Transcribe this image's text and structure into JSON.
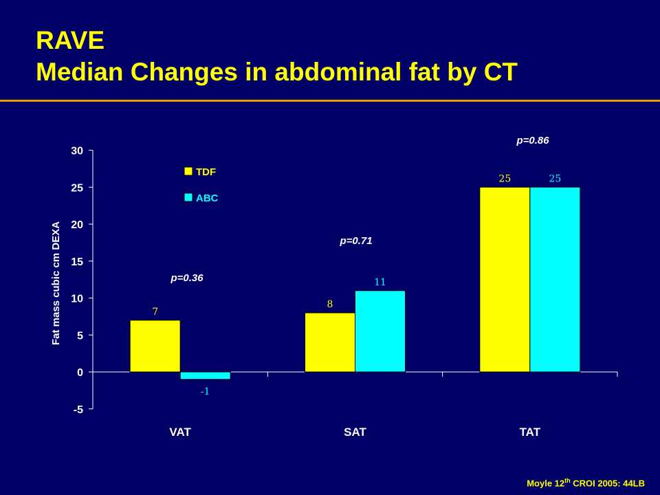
{
  "slide": {
    "title_line1": "RAVE",
    "title_line2": "Median Changes in abdominal fat by CT",
    "footer_prefix": "Moyle 12",
    "footer_sup": "th",
    "footer_suffix": " CROI 2005: 44LB"
  },
  "colors": {
    "background": "#000066",
    "title": "#ffff00",
    "rule": "#e8a000",
    "TDF": "#ffff00",
    "ABC": "#00ffff",
    "axis_text": "#ffffff"
  },
  "chart_data": {
    "type": "bar",
    "categories": [
      "VAT",
      "SAT",
      "TAT"
    ],
    "series": [
      {
        "name": "TDF",
        "values": [
          7,
          8,
          25
        ],
        "color": "#ffff00"
      },
      {
        "name": "ABC",
        "values": [
          -1,
          11,
          25
        ],
        "color": "#00ffff"
      }
    ],
    "ylabel": "Fat mass cubic cm DEXA",
    "ylim": [
      -5,
      30
    ],
    "yticks": [
      -5,
      0,
      5,
      10,
      15,
      20,
      25,
      30
    ],
    "annotations": [
      "p=0.36",
      "p=0.71",
      "p=0.86"
    ],
    "legend_position": "top-left",
    "grid": false
  }
}
